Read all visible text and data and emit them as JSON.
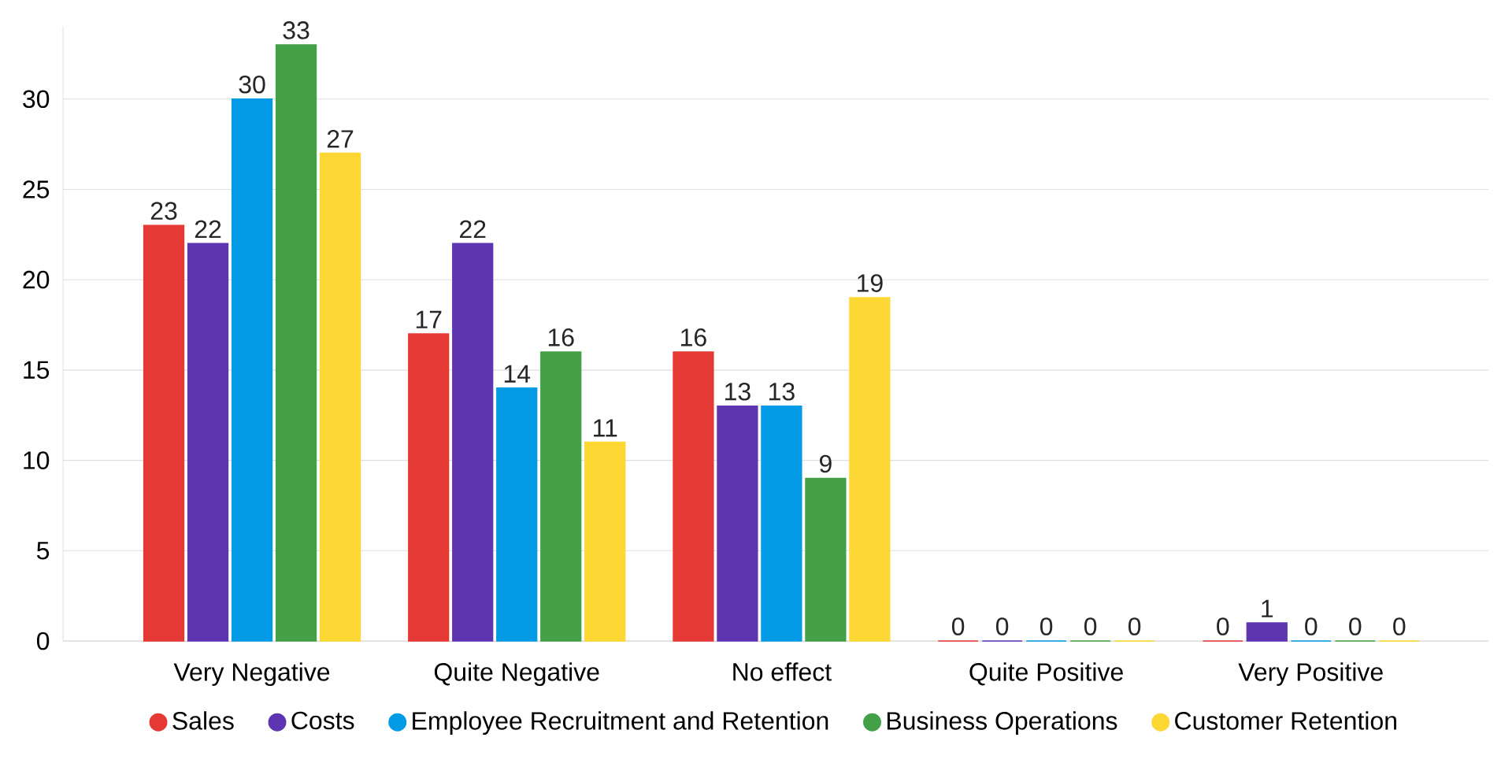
{
  "chart_data": {
    "type": "bar",
    "categories": [
      "Very Negative",
      "Quite Negative",
      "No effect",
      "Quite Positive",
      "Very Positive"
    ],
    "series": [
      {
        "name": "Sales",
        "color": "#e53935",
        "values": [
          23,
          17,
          16,
          0,
          0
        ]
      },
      {
        "name": "Costs",
        "color": "#5e35b1",
        "values": [
          22,
          22,
          13,
          0,
          1
        ]
      },
      {
        "name": "Employee Recruitment and Retention",
        "color": "#039be5",
        "values": [
          30,
          14,
          13,
          0,
          0
        ]
      },
      {
        "name": "Business Operations",
        "color": "#43a047",
        "values": [
          33,
          16,
          9,
          0,
          0
        ]
      },
      {
        "name": "Customer Retention",
        "color": "#fdd835",
        "values": [
          27,
          11,
          19,
          0,
          0
        ]
      }
    ],
    "ylim": [
      0,
      34
    ],
    "yticks": [
      0,
      5,
      10,
      15,
      20,
      25,
      30
    ],
    "grid": "y",
    "legend": "bottom",
    "data_labels": true,
    "marker": "circle"
  }
}
